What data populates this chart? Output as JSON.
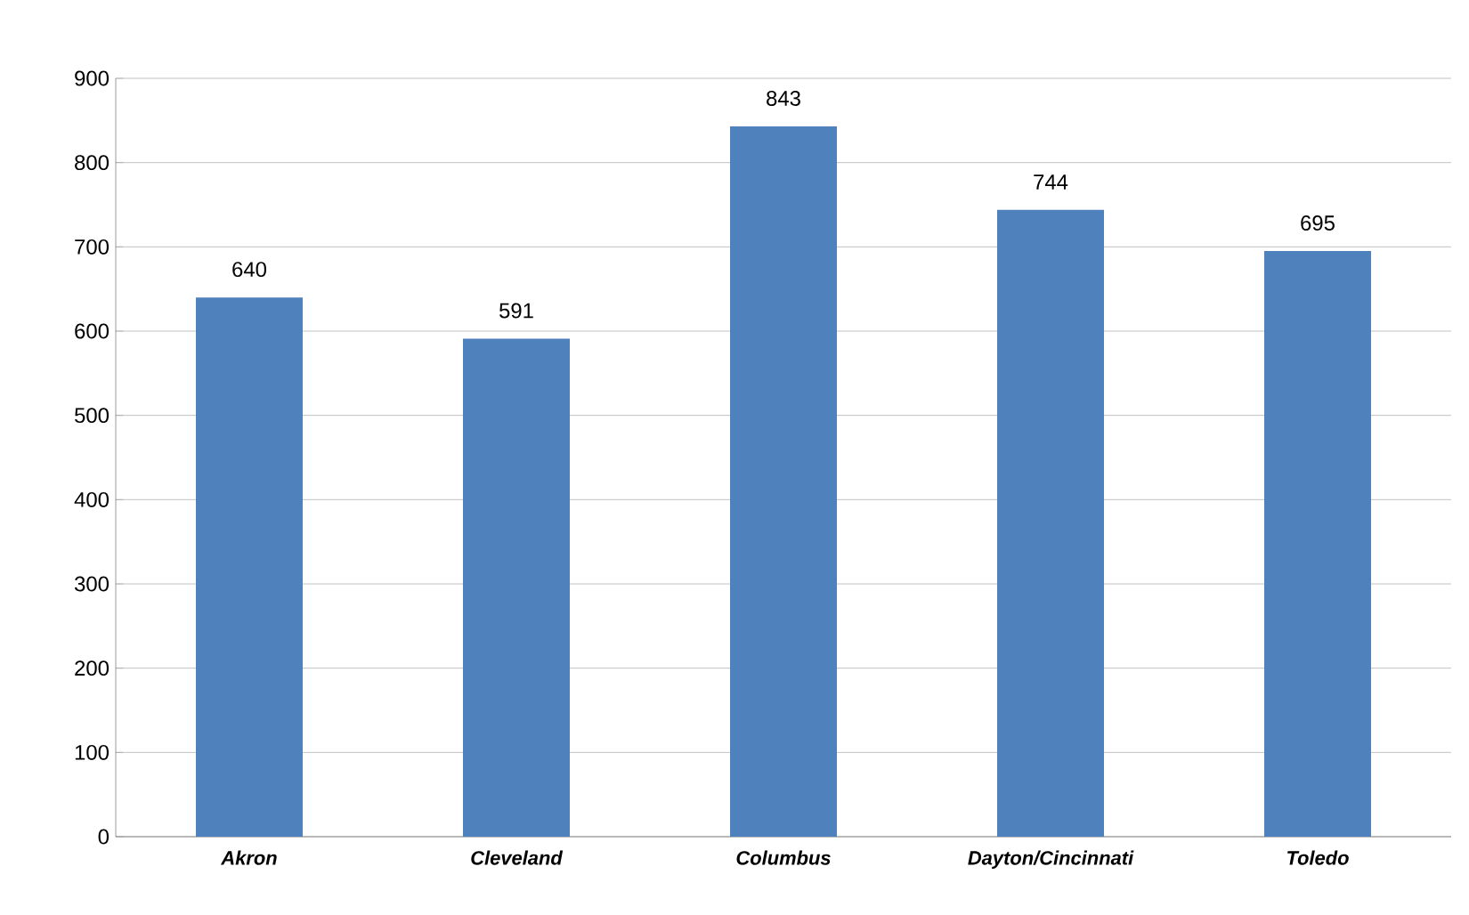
{
  "chart_data": {
    "type": "bar",
    "categories": [
      "Akron",
      "Cleveland",
      "Columbus",
      "Dayton/Cincinnati",
      "Toledo"
    ],
    "values": [
      640,
      591,
      843,
      744,
      695
    ],
    "color": "#4f81bd",
    "ylim": [
      0,
      900
    ],
    "yticks": [
      0,
      100,
      200,
      300,
      400,
      500,
      600,
      700,
      800,
      900
    ],
    "grid": "y",
    "data_labels": true
  }
}
